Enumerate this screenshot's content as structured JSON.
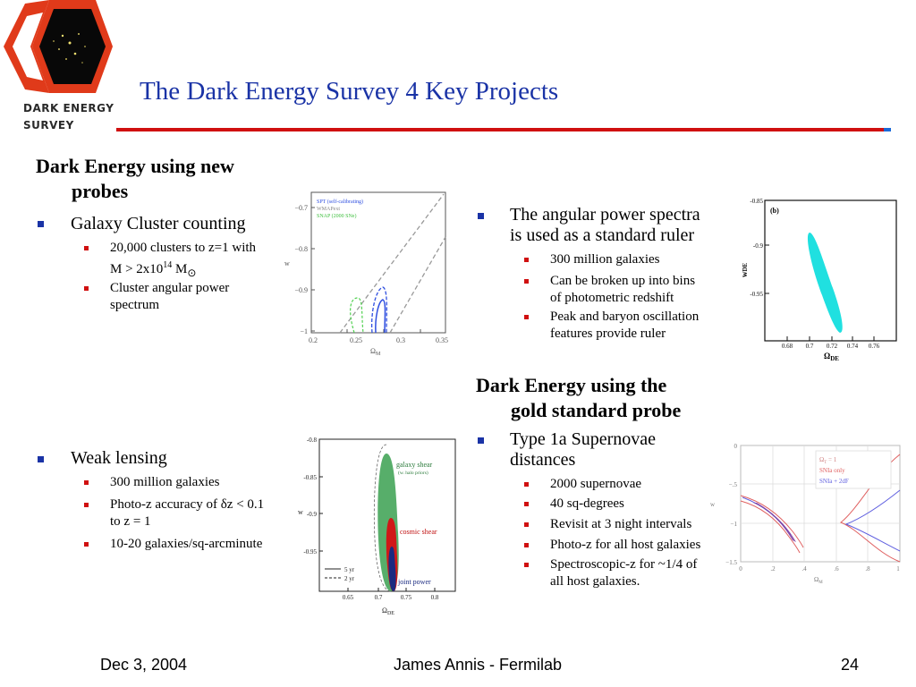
{
  "logo": {
    "line1": "DARK ENERGY",
    "line2": "SURVEY"
  },
  "title": "The Dark Energy Survey 4 Key Projects",
  "left": {
    "heading_line1": "Dark Energy using new",
    "heading_line2": "probes",
    "cluster": {
      "label": "Galaxy Cluster counting",
      "sub1_line1": "20,000 clusters to z=1 with",
      "sub1_line2_pre": "M > 2x10",
      "sub1_sup": "14",
      "sub1_unit": " M",
      "sub1_sun": "⊙",
      "sub2_line1": "Cluster angular power",
      "sub2_line2": "spectrum"
    },
    "weak": {
      "label": "Weak lensing",
      "sub1": "300 million galaxies",
      "sub2_line1_pre": "Photo-z accuracy of ",
      "sub2_delta": "δ",
      "sub2_line1_post": "z < 0.1",
      "sub2_line2": "to z = 1",
      "sub3": "10-20 galaxies/sq-arcminute"
    }
  },
  "right": {
    "angular": {
      "label_line1": "The angular power spectra",
      "label_line2": "is used as a standard ruler",
      "sub1": "300 million galaxies",
      "sub2_line1": "Can be broken up into bins",
      "sub2_line2": "of photometric redshift",
      "sub3_line1": "Peak and baryon oscillation",
      "sub3_line2": "features provide ruler"
    },
    "heading_line1": "Dark Energy using the",
    "heading_line2": "gold standard probe",
    "sn": {
      "label_line1": "Type 1a Supernovae",
      "label_line2": "distances",
      "sub1": "2000 supernovae",
      "sub2": "40 sq-degrees",
      "sub3": "Revisit at 3 night intervals",
      "sub4": "Photo-z for all host galaxies",
      "sub5_line1": "Spectroscopic-z for ~1/4 of",
      "sub5_line2": "all host galaxies."
    }
  },
  "footer": {
    "date": "Dec 3, 2004",
    "author": "James Annis - Fermilab",
    "page": "24"
  },
  "plot1": {
    "legend1": "SPT (self-calibrating)",
    "legend2": "WMAPext",
    "legend3": "SNAP (2000 SNe)",
    "ylabel": "w",
    "xlabel": "Ω",
    "xlabel_sub": "M",
    "yticks": [
      "−0.7",
      "−0.8",
      "−0.9",
      "−1"
    ],
    "xticks": [
      "0.2",
      "0.25",
      "0.3",
      "0.35"
    ],
    "colors": {
      "spt": "#3050e0",
      "wmap": "#999999",
      "snap": "#40c040"
    }
  },
  "plot2": {
    "panel_label": "(b)",
    "ylabel": "w",
    "ylabel_sub": "DE",
    "xlabel": "Ω",
    "xlabel_sub": "DE",
    "yticks": [
      "-0.85",
      "-0.9",
      "-0.95"
    ],
    "xticks": [
      "0.68",
      "0.7",
      "0.72",
      "0.74",
      "0.76"
    ],
    "colors": {
      "fill": "#20e0e0"
    }
  },
  "plot3": {
    "ylabel": "w",
    "xlabel": "Ω",
    "xlabel_sub": "DE",
    "yticks": [
      "-0.8",
      "-0.85",
      "-0.9",
      "-0.95"
    ],
    "xticks": [
      "0.65",
      "0.7",
      "0.75",
      "0.8"
    ],
    "label_galaxy": "galaxy shear",
    "label_galaxy_sub": "(w. halo priors)",
    "label_cosmic": "cosmic shear",
    "label_joint": "joint power",
    "legend1": "5 yr",
    "legend2": "2 yr",
    "colors": {
      "galaxy": "#3aa050",
      "cosmic": "#d01818",
      "joint": "#1a2a80"
    }
  },
  "plot4": {
    "legend1": "Ω",
    "legend1_sub": "T",
    "legend1_post": " = 1",
    "legend2": "SNIa only",
    "legend3": "SNIa + 2dF",
    "ylabel": "w",
    "xlabel": "Ω",
    "xlabel_sub": "M",
    "yticks": [
      "0",
      "−.5",
      "−1",
      "−1.5"
    ],
    "xticks": [
      "0",
      ".2",
      ".4",
      ".6",
      ".8",
      "1"
    ],
    "colors": {
      "red": "#e06060",
      "blue": "#6060e0",
      "purple": "#7a3aa0"
    }
  }
}
